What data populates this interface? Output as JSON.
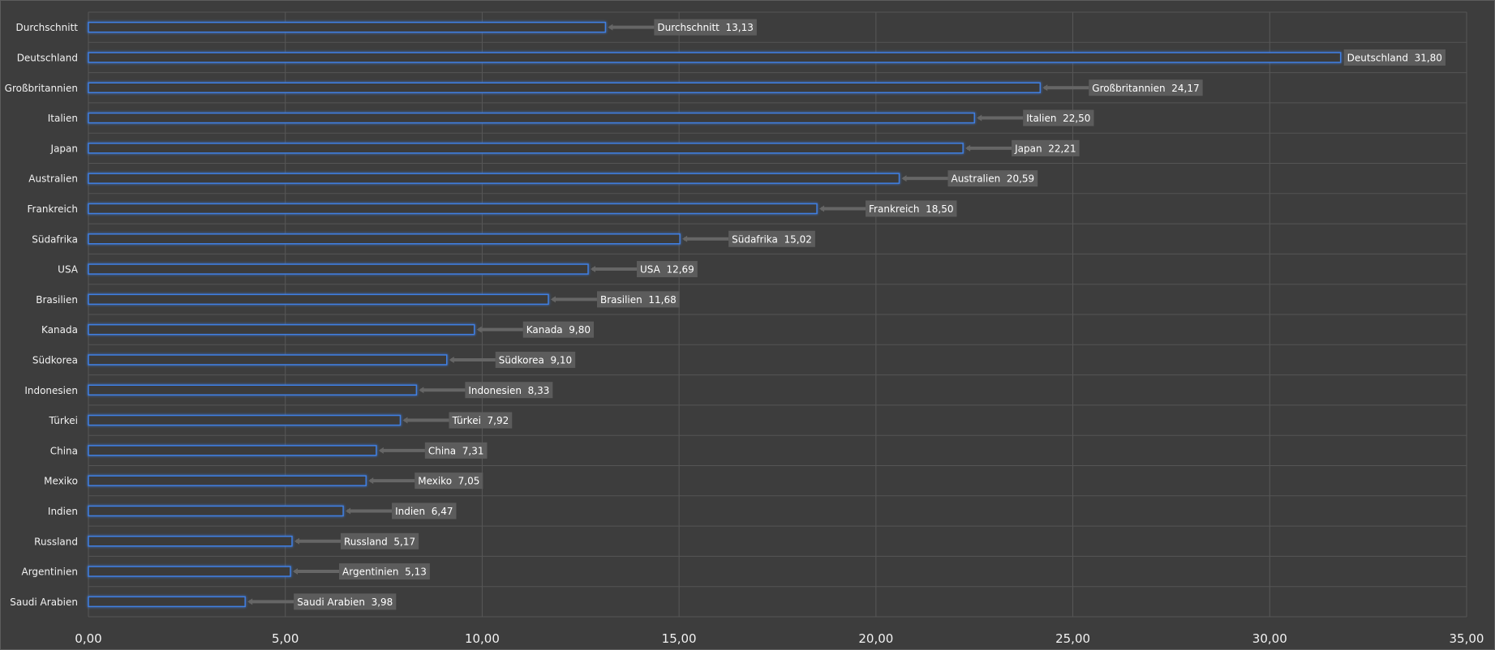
{
  "chart_data": {
    "type": "bar",
    "orientation": "horizontal",
    "title": "",
    "xlabel": "",
    "ylabel": "",
    "xlim": [
      0,
      35
    ],
    "tick_values": [
      0,
      5,
      10,
      15,
      20,
      25,
      30,
      35
    ],
    "tick_labels": [
      "0,00",
      "5,00",
      "10,00",
      "15,00",
      "20,00",
      "25,00",
      "30,00",
      "35,00"
    ],
    "categories": [
      "Durchschnitt",
      "Deutschland",
      "Großbritannien",
      "Italien",
      "Japan",
      "Australien",
      "Frankreich",
      "Südafrika",
      "USA",
      "Brasilien",
      "Kanada",
      "Südkorea",
      "Indonesien",
      "Türkei",
      "China",
      "Mexiko",
      "Indien",
      "Russland",
      "Argentinien",
      "Saudi Arabien"
    ],
    "values": [
      13.13,
      31.8,
      24.17,
      22.5,
      22.21,
      20.59,
      18.5,
      15.02,
      12.69,
      11.68,
      9.8,
      9.1,
      8.33,
      7.92,
      7.31,
      7.05,
      6.47,
      5.17,
      5.13,
      3.98
    ],
    "data_labels": [
      "Durchschnitt  13,13",
      "Deutschland  31,80",
      "Großbritannien  24,17",
      "Italien  22,50",
      "Japan  22,21",
      "Australien  20,59",
      "Frankreich  18,50",
      "Südafrika  15,02",
      "USA  12,69",
      "Brasilien  11,68",
      "Kanada  9,80",
      "Südkorea  9,10",
      "Indonesien  8,33",
      "Türkei  7,92",
      "China  7,31",
      "Mexiko  7,05",
      "Indien  6,47",
      "Russland  5,17",
      "Argentinien  5,13",
      "Saudi Arabien  3,98"
    ],
    "grid": true,
    "legend": "none",
    "colors": {
      "background": "#3d3d3d",
      "bar_fill": "#3a3a3a",
      "bar_stroke": "#3f7fe2",
      "bar_glow": "#4aa3ff",
      "label_bg": "#5c5c5c",
      "leader": "#666666",
      "text": "#f2f2f2",
      "grid": "#585858"
    }
  }
}
